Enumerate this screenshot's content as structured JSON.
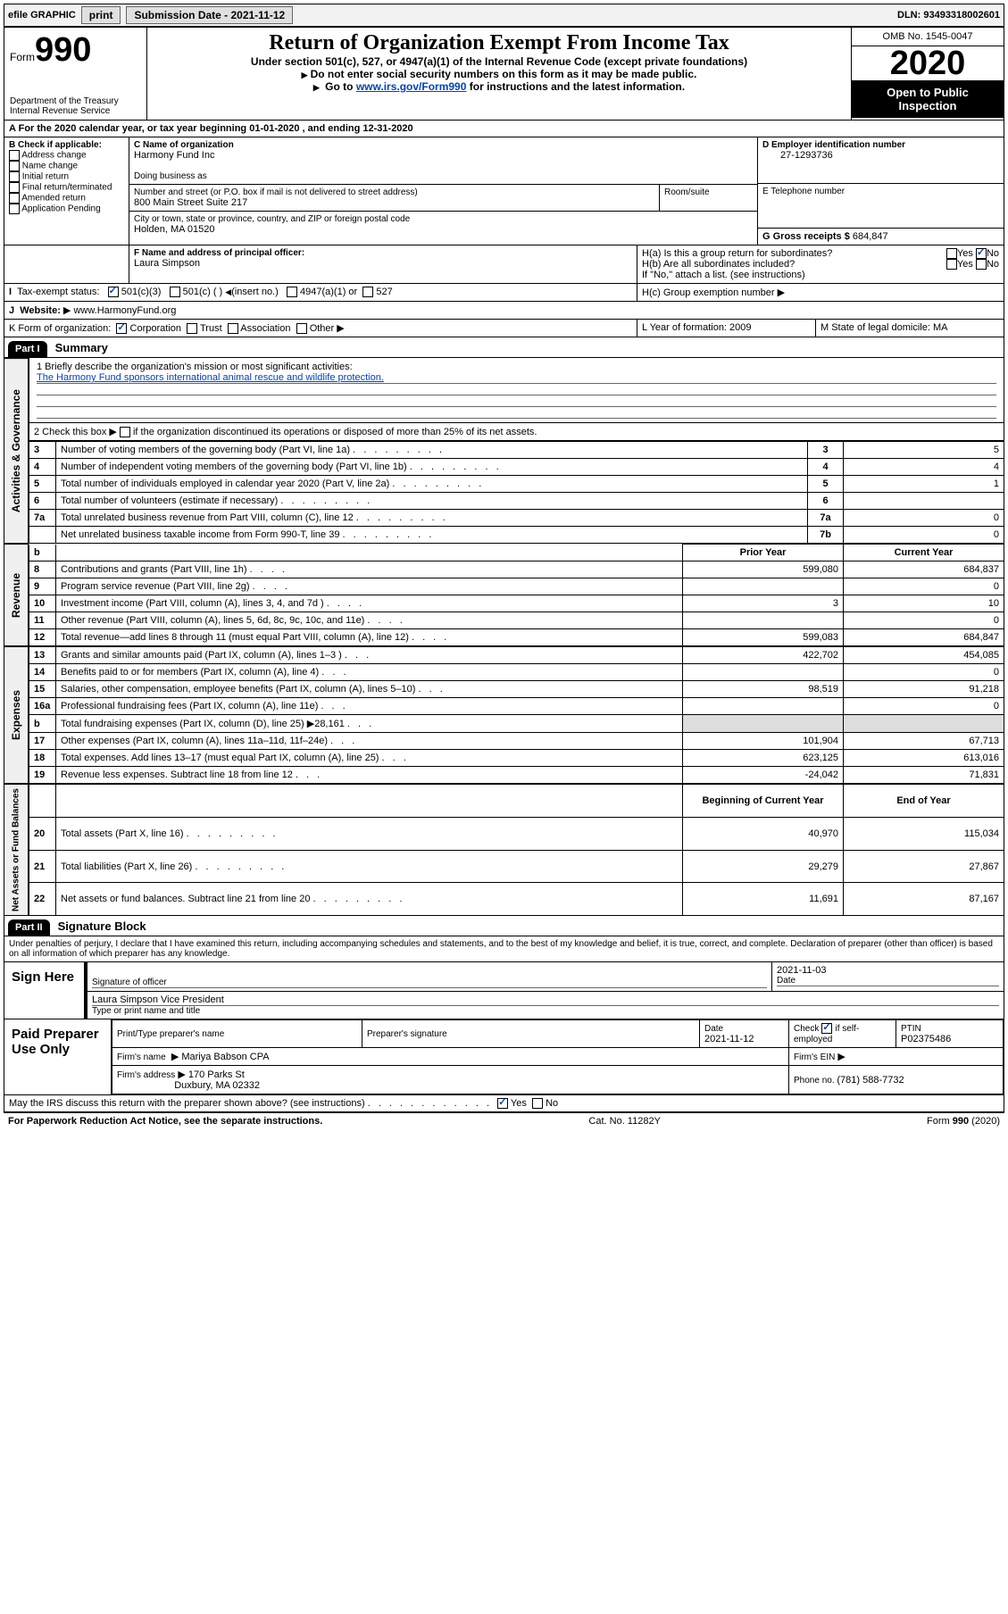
{
  "topbar": {
    "efile_label": "efile GRAPHIC",
    "print_btn": "print",
    "submission_label": "Submission Date - 2021-11-12",
    "dln_label": "DLN: 93493318002601"
  },
  "header": {
    "form_word": "Form",
    "form_num": "990",
    "dept1": "Department of the Treasury",
    "dept2": "Internal Revenue Service",
    "title": "Return of Organization Exempt From Income Tax",
    "subtitle": "Under section 501(c), 527, or 4947(a)(1) of the Internal Revenue Code (except private foundations)",
    "note1": "Do not enter social security numbers on this form as it may be made public.",
    "note2_a": "Go to ",
    "note2_link": "www.irs.gov/Form990",
    "note2_b": " for instructions and the latest information.",
    "omb": "OMB No. 1545-0047",
    "year": "2020",
    "inspect": "Open to Public Inspection"
  },
  "period": {
    "text_a": "For the 2020 calendar year, or tax year beginning ",
    "begin": "01-01-2020",
    "text_b": " , and ending ",
    "end": "12-31-2020"
  },
  "boxB": {
    "label": "B Check if applicable:",
    "items": [
      "Address change",
      "Name change",
      "Initial return",
      "Final return/terminated",
      "Amended return",
      "Application Pending"
    ]
  },
  "boxC": {
    "label": "C Name of organization",
    "name": "Harmony Fund Inc",
    "dba_label": "Doing business as",
    "addr_label": "Number and street (or P.O. box if mail is not delivered to street address)",
    "room_label": "Room/suite",
    "addr": "800 Main Street Suite 217",
    "city_label": "City or town, state or province, country, and ZIP or foreign postal code",
    "city": "Holden, MA  01520"
  },
  "boxD": {
    "label": "D Employer identification number",
    "value": "27-1293736"
  },
  "boxE": {
    "label": "E Telephone number",
    "value": ""
  },
  "boxG": {
    "label": "G Gross receipts $ ",
    "value": "684,847"
  },
  "boxF": {
    "label": "F  Name and address of principal officer:",
    "name": "Laura Simpson"
  },
  "boxH": {
    "ha_label": "H(a)  Is this a group return for subordinates?",
    "yes": "Yes",
    "no": "No",
    "hb_label": "H(b)  Are all subordinates included?",
    "hb_note": "If \"No,\" attach a list. (see instructions)",
    "hc_label": "H(c)  Group exemption number"
  },
  "boxI": {
    "label": "Tax-exempt status:",
    "opts": [
      "501(c)(3)",
      "501(c) (  )",
      "(insert no.)",
      "4947(a)(1) or",
      "527"
    ]
  },
  "boxJ": {
    "label": "Website:",
    "value": "www.HarmonyFund.org"
  },
  "boxK": {
    "label": "K Form of organization:",
    "opts": [
      "Corporation",
      "Trust",
      "Association",
      "Other"
    ]
  },
  "boxL": {
    "label": "L Year of formation: ",
    "value": "2009"
  },
  "boxM": {
    "label": "M State of legal domicile: ",
    "value": "MA"
  },
  "part1": {
    "hdr": "Part I",
    "title": "Summary"
  },
  "summary_lines": {
    "l1_label": "1   Briefly describe the organization's mission or most significant activities:",
    "l1_text": "The Harmony Fund sponsors international animal rescue and wildlife protection.",
    "l2_label": "2   Check this box",
    "l2_text": "if the organization discontinued its operations or disposed of more than 25% of its net assets.",
    "rows": [
      {
        "n": "3",
        "label": "Number of voting members of the governing body (Part VI, line 1a)",
        "box": "3",
        "val": "5"
      },
      {
        "n": "4",
        "label": "Number of independent voting members of the governing body (Part VI, line 1b)",
        "box": "4",
        "val": "4"
      },
      {
        "n": "5",
        "label": "Total number of individuals employed in calendar year 2020 (Part V, line 2a)",
        "box": "5",
        "val": "1"
      },
      {
        "n": "6",
        "label": "Total number of volunteers (estimate if necessary)",
        "box": "6",
        "val": ""
      },
      {
        "n": "7a",
        "label": "Total unrelated business revenue from Part VIII, column (C), line 12",
        "box": "7a",
        "val": "0"
      },
      {
        "n": "",
        "label": "Net unrelated business taxable income from Form 990-T, line 39",
        "box": "7b",
        "val": "0"
      }
    ]
  },
  "fin_headers": {
    "prior": "Prior Year",
    "current": "Current Year"
  },
  "revenue_rows": [
    {
      "n": "8",
      "label": "Contributions and grants (Part VIII, line 1h)",
      "p": "599,080",
      "c": "684,837"
    },
    {
      "n": "9",
      "label": "Program service revenue (Part VIII, line 2g)",
      "p": "",
      "c": "0"
    },
    {
      "n": "10",
      "label": "Investment income (Part VIII, column (A), lines 3, 4, and 7d )",
      "p": "3",
      "c": "10"
    },
    {
      "n": "11",
      "label": "Other revenue (Part VIII, column (A), lines 5, 6d, 8c, 9c, 10c, and 11e)",
      "p": "",
      "c": "0"
    },
    {
      "n": "12",
      "label": "Total revenue—add lines 8 through 11 (must equal Part VIII, column (A), line 12)",
      "p": "599,083",
      "c": "684,847"
    }
  ],
  "expense_rows": [
    {
      "n": "13",
      "label": "Grants and similar amounts paid (Part IX, column (A), lines 1–3 )",
      "p": "422,702",
      "c": "454,085"
    },
    {
      "n": "14",
      "label": "Benefits paid to or for members (Part IX, column (A), line 4)",
      "p": "",
      "c": "0"
    },
    {
      "n": "15",
      "label": "Salaries, other compensation, employee benefits (Part IX, column (A), lines 5–10)",
      "p": "98,519",
      "c": "91,218"
    },
    {
      "n": "16a",
      "label": "Professional fundraising fees (Part IX, column (A), line 11e)",
      "p": "",
      "c": "0"
    },
    {
      "n": "b",
      "label": "Total fundraising expenses (Part IX, column (D), line 25) ▶28,161",
      "p": "—shade—",
      "c": "—shade—"
    },
    {
      "n": "17",
      "label": "Other expenses (Part IX, column (A), lines 11a–11d, 11f–24e)",
      "p": "101,904",
      "c": "67,713"
    },
    {
      "n": "18",
      "label": "Total expenses. Add lines 13–17 (must equal Part IX, column (A), line 25)",
      "p": "623,125",
      "c": "613,016"
    },
    {
      "n": "19",
      "label": "Revenue less expenses. Subtract line 18 from line 12",
      "p": "-24,042",
      "c": "71,831"
    }
  ],
  "net_headers": {
    "begin": "Beginning of Current Year",
    "end": "End of Year"
  },
  "net_rows": [
    {
      "n": "20",
      "label": "Total assets (Part X, line 16)",
      "p": "40,970",
      "c": "115,034"
    },
    {
      "n": "21",
      "label": "Total liabilities (Part X, line 26)",
      "p": "29,279",
      "c": "27,867"
    },
    {
      "n": "22",
      "label": "Net assets or fund balances. Subtract line 21 from line 20",
      "p": "11,691",
      "c": "87,167"
    }
  ],
  "part2": {
    "hdr": "Part II",
    "title": "Signature Block"
  },
  "perjury": "Under penalties of perjury, I declare that I have examined this return, including accompanying schedules and statements, and to the best of my knowledge and belief, it is true, correct, and complete. Declaration of preparer (other than officer) is based on all information of which preparer has any knowledge.",
  "sign": {
    "here": "Sign Here",
    "sig_label": "Signature of officer",
    "date_label": "Date",
    "date_val": "2021-11-03",
    "name": "Laura Simpson Vice President",
    "name_label": "Type or print name and title"
  },
  "preparer": {
    "title": "Paid Preparer Use Only",
    "print_label": "Print/Type preparer's name",
    "sig_label": "Preparer's signature",
    "date_label": "Date",
    "date_val": "2021-11-12",
    "check_label": "Check",
    "self_emp": "if self-employed",
    "ptin_label": "PTIN",
    "ptin_val": "P02375486",
    "firm_name_label": "Firm's name",
    "firm_name": "Mariya Babson CPA",
    "firm_ein_label": "Firm's EIN",
    "firm_addr_label": "Firm's address",
    "firm_addr1": "170 Parks St",
    "firm_addr2": "Duxbury, MA  02332",
    "phone_label": "Phone no. ",
    "phone_val": "(781) 588-7732"
  },
  "discuss": {
    "label": "May the IRS discuss this return with the preparer shown above? (see instructions)",
    "yes": "Yes",
    "no": "No"
  },
  "footer": {
    "left": "For Paperwork Reduction Act Notice, see the separate instructions.",
    "mid": "Cat. No. 11282Y",
    "right_a": "Form ",
    "right_b": "990",
    "right_c": " (2020)"
  },
  "vtabs": {
    "gov": "Activities & Governance",
    "rev": "Revenue",
    "exp": "Expenses",
    "net": "Net Assets or Fund Balances"
  }
}
